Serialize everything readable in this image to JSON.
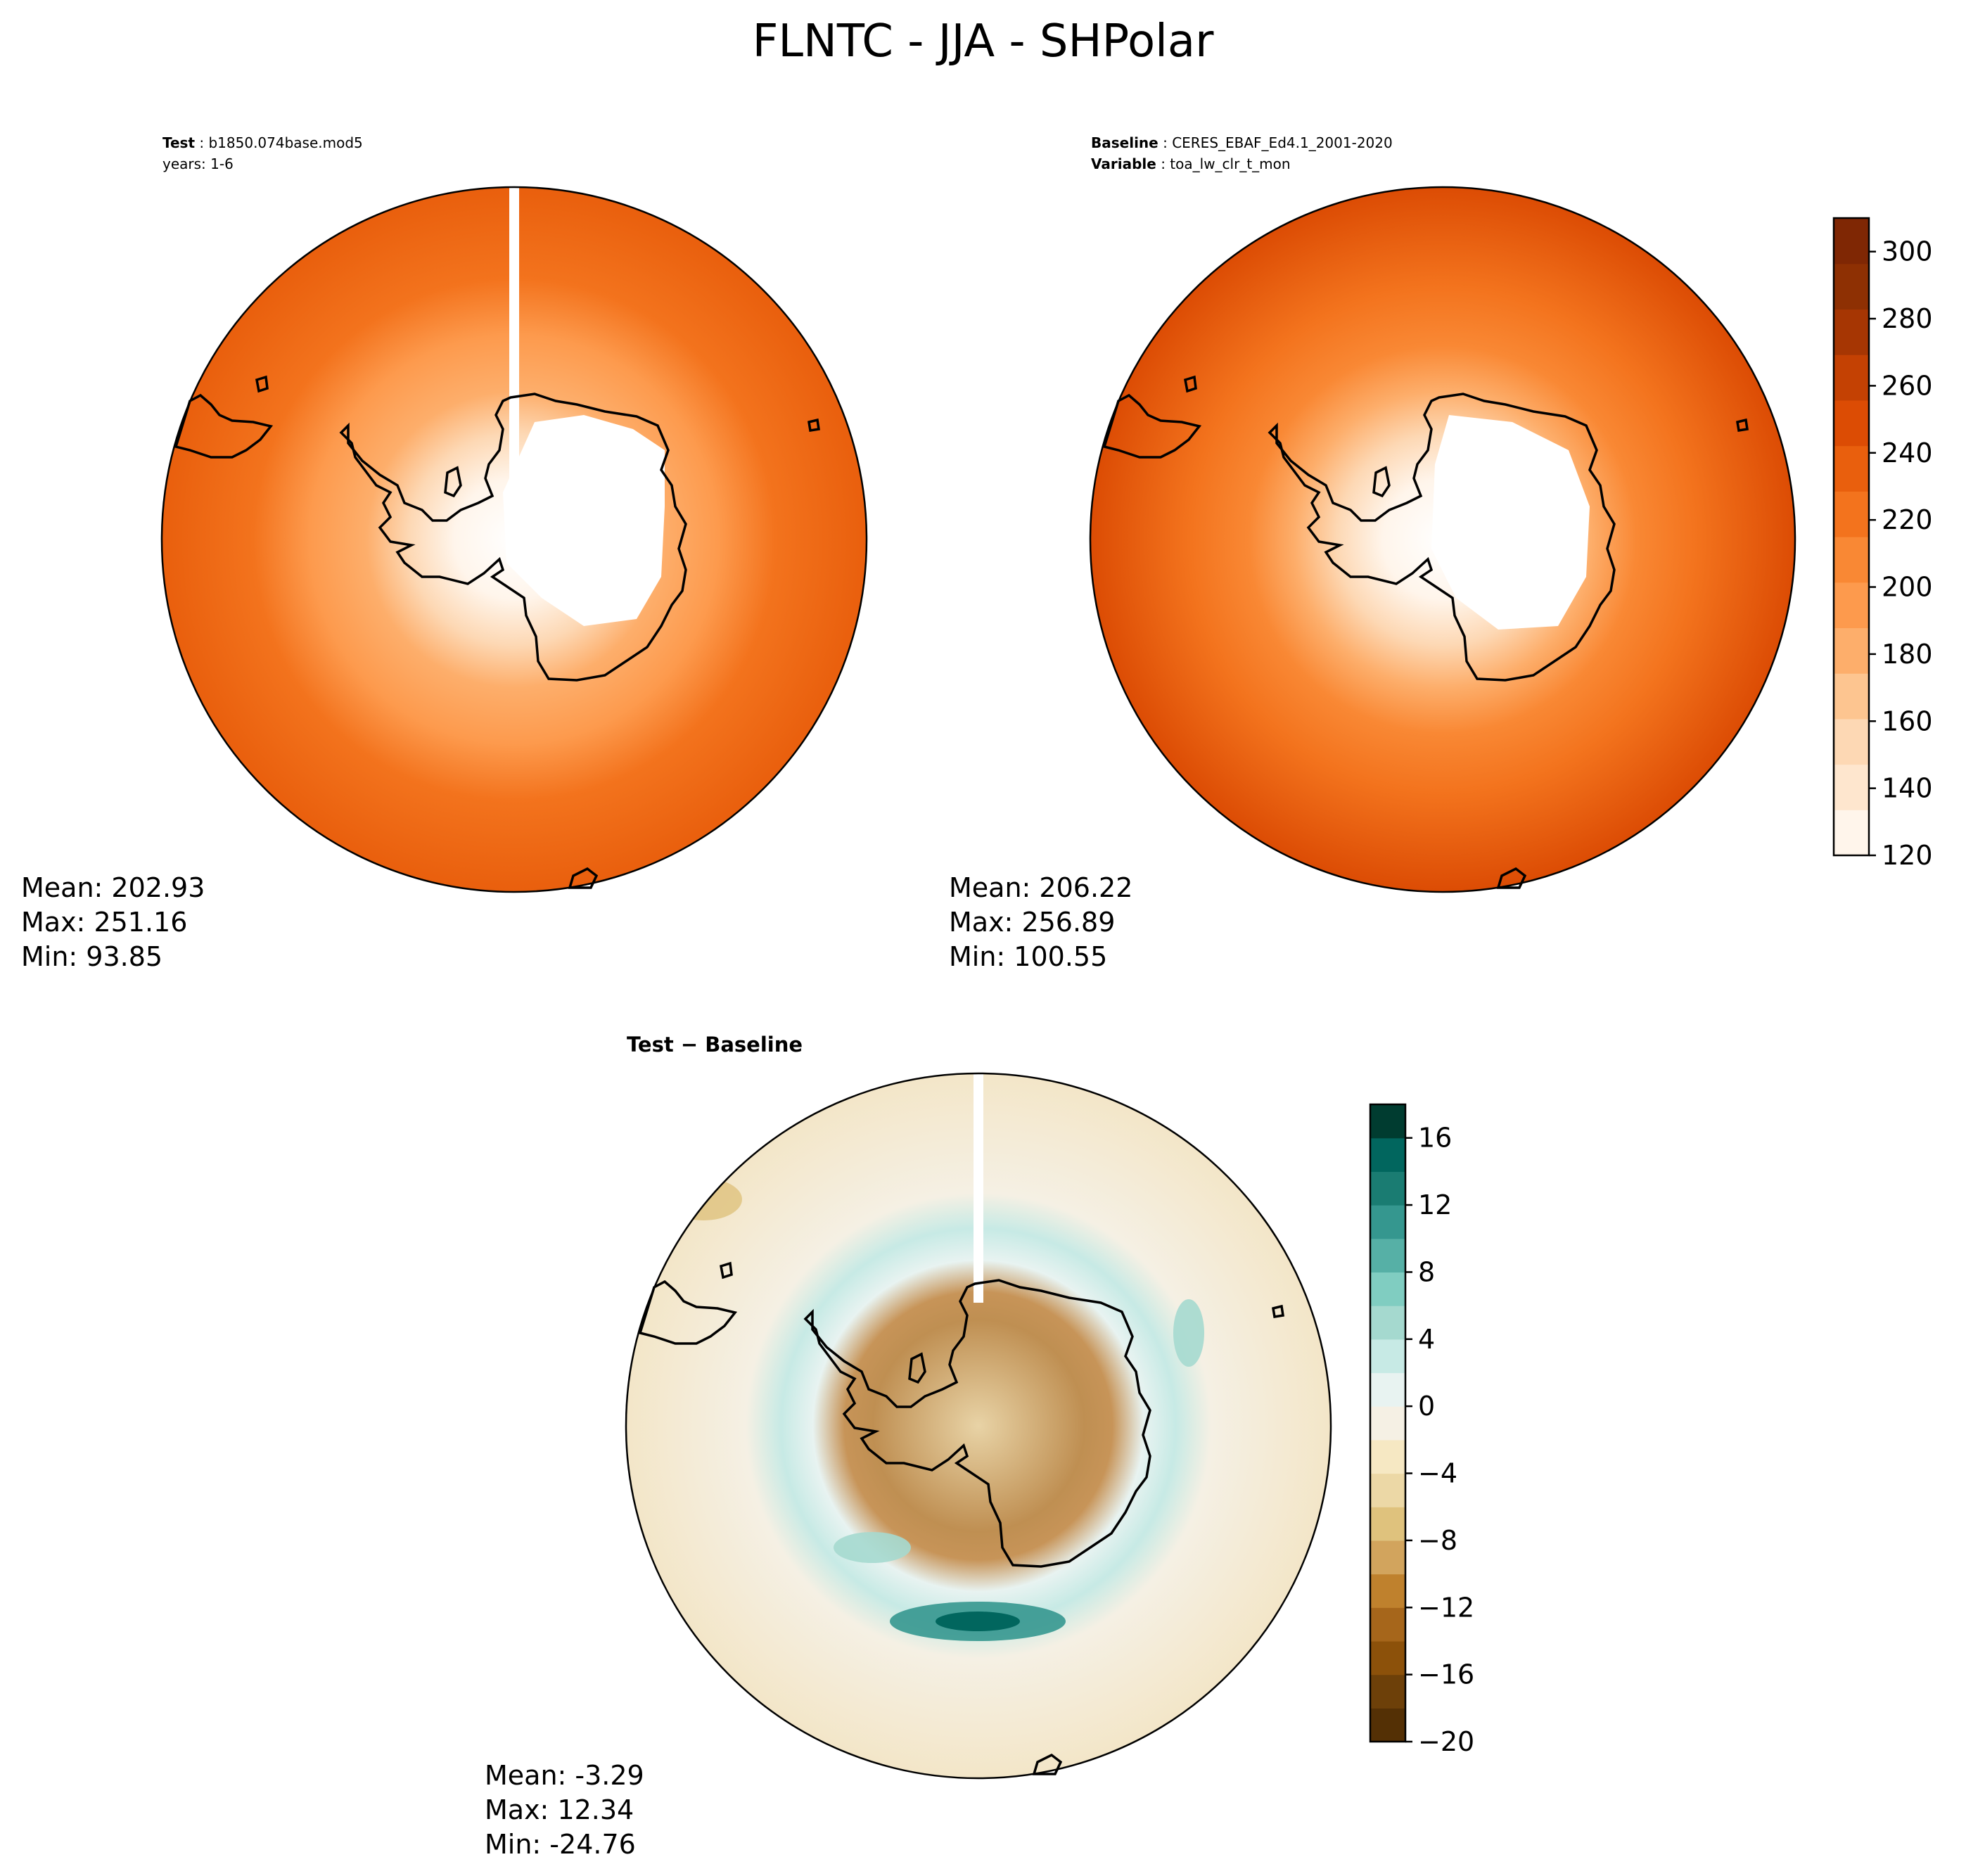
{
  "figure": {
    "title": "FLNTC - JJA - SHPolar"
  },
  "panels": {
    "test": {
      "label_key": "Test",
      "label_value": "b1850.074base.mod5",
      "years": "years: 1-6",
      "stats": {
        "mean": "Mean: 202.93",
        "max": "Max: 251.16",
        "min": "Min: 93.85"
      }
    },
    "baseline": {
      "label_key": "Baseline",
      "label_value": "CERES_EBAF_Ed4.1_2001-2020",
      "variable_key": "Variable",
      "variable_value": "toa_lw_clr_t_mon",
      "stats": {
        "mean": "Mean: 206.22",
        "max": "Max: 256.89",
        "min": "Min: 100.55"
      }
    },
    "diff": {
      "title": "Test − Baseline",
      "stats": {
        "mean": "Mean: -3.29",
        "max": "Max: 12.34",
        "min": "Min: -24.76"
      }
    }
  },
  "colorbars": {
    "main": {
      "ticks": [
        "120",
        "140",
        "160",
        "180",
        "200",
        "220",
        "240",
        "260",
        "280",
        "300"
      ],
      "levels_min": 120,
      "levels_max": 310,
      "colors": [
        "#fff5eb",
        "#fee6ce",
        "#fdd8b4",
        "#fdc590",
        "#fdae6b",
        "#fd9a4d",
        "#f98834",
        "#f3731d",
        "#e95f0d",
        "#dc4c04",
        "#c44103",
        "#a63603",
        "#8e3003",
        "#7f2704"
      ]
    },
    "diff": {
      "ticks": [
        "−20",
        "−16",
        "−12",
        "−8",
        "−4",
        "0",
        "4",
        "8",
        "12",
        "16"
      ],
      "levels_min": -20,
      "levels_max": 18,
      "colors": [
        "#543005",
        "#6d4009",
        "#8c510a",
        "#a6661b",
        "#bf812d",
        "#d2a45d",
        "#dfc27d",
        "#ecd8a6",
        "#f6e8c3",
        "#f5f0e4",
        "#e8f3f1",
        "#c7eae5",
        "#a5d9cf",
        "#80cdc1",
        "#56b0a6",
        "#35978f",
        "#1a7c72",
        "#01665e",
        "#003c30"
      ]
    }
  }
}
